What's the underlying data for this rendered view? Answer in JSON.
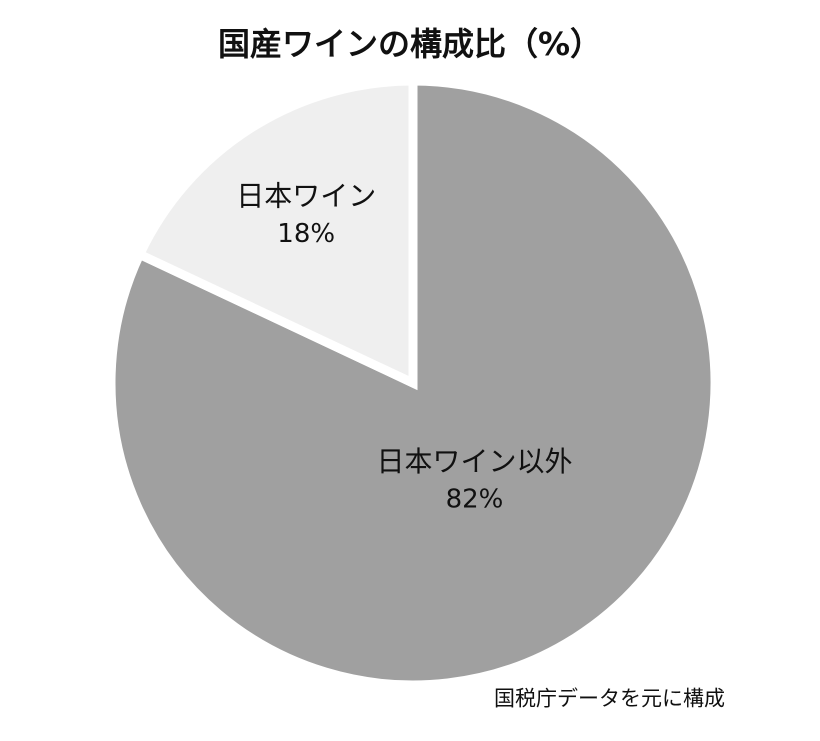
{
  "chart_data": {
    "type": "pie",
    "title": "国産ワインの構成比（%）",
    "categories": [
      "日本ワイン以外",
      "日本ワイン"
    ],
    "values": [
      82,
      18
    ],
    "value_labels": [
      "82%",
      "18%"
    ],
    "colors": [
      "#a0a0a0",
      "#efefef"
    ],
    "source": "国税庁データを元に構成"
  }
}
